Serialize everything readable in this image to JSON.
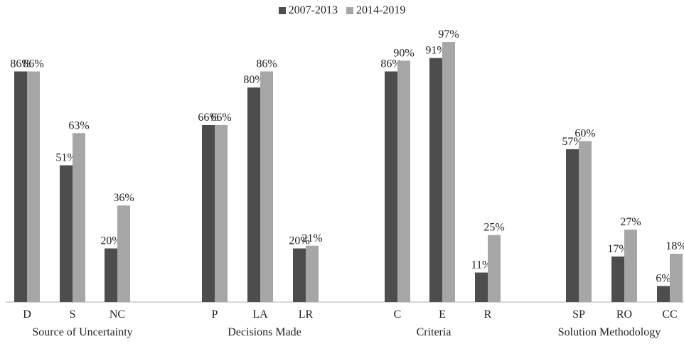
{
  "chart_data": {
    "type": "bar",
    "title": "",
    "xlabel": "",
    "ylabel": "",
    "ylim": [
      0,
      100
    ],
    "grid": false,
    "legend_position": "top-center",
    "colors": {
      "series1": "#4d4d4d",
      "series2": "#a6a6a6",
      "axis": "#bfbfbf"
    },
    "series": [
      {
        "name": "2007-2013"
      },
      {
        "name": "2014-2019"
      }
    ],
    "groups": [
      {
        "label": "Source of Uncertainty",
        "categories": [
          {
            "label": "D",
            "values": [
              86,
              86
            ],
            "value_labels": [
              "86%",
              "86%"
            ]
          },
          {
            "label": "S",
            "values": [
              51,
              63
            ],
            "value_labels": [
              "51%",
              "63%"
            ]
          },
          {
            "label": "NC",
            "values": [
              20,
              36
            ],
            "value_labels": [
              "20%",
              "36%"
            ]
          }
        ]
      },
      {
        "label": "Decisions Made",
        "categories": [
          {
            "label": "P",
            "values": [
              66,
              66
            ],
            "value_labels": [
              "66%",
              "66%"
            ]
          },
          {
            "label": "LA",
            "values": [
              80,
              86
            ],
            "value_labels": [
              "80%",
              "86%"
            ]
          },
          {
            "label": "LR",
            "values": [
              20,
              21
            ],
            "value_labels": [
              "20%",
              "21%"
            ]
          }
        ]
      },
      {
        "label": "Criteria",
        "categories": [
          {
            "label": "C",
            "values": [
              86,
              90
            ],
            "value_labels": [
              "86%",
              "90%"
            ]
          },
          {
            "label": "E",
            "values": [
              91,
              97
            ],
            "value_labels": [
              "91%",
              "97%"
            ]
          },
          {
            "label": "R",
            "values": [
              11,
              25
            ],
            "value_labels": [
              "11%",
              "25%"
            ]
          }
        ]
      },
      {
        "label": "Solution Methodology",
        "categories": [
          {
            "label": "SP",
            "values": [
              57,
              60
            ],
            "value_labels": [
              "57%",
              "60%"
            ]
          },
          {
            "label": "RO",
            "values": [
              17,
              27
            ],
            "value_labels": [
              "17%",
              "27%"
            ]
          },
          {
            "label": "CC",
            "values": [
              6,
              18
            ],
            "value_labels": [
              "6%",
              "18%"
            ]
          }
        ]
      }
    ]
  }
}
